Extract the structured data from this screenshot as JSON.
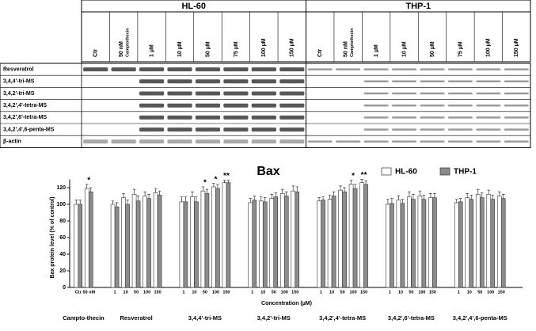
{
  "blot": {
    "cell_lines": [
      "HL-60",
      "THP-1"
    ],
    "lanes": [
      {
        "label": "Ctr"
      },
      {
        "label": "50 nM",
        "sublabel": "Camptothecin"
      },
      {
        "label": "1 µM"
      },
      {
        "label": "10 µM"
      },
      {
        "label": "50 µM"
      },
      {
        "label": "75 µM"
      },
      {
        "label": "100 µM"
      },
      {
        "label": "150 µM"
      }
    ],
    "rows": [
      "Resveratrol",
      "3,4,4'-tri-MS",
      "3,4,2'-tri-MS",
      "3,4,2',4'-tetra-MS",
      "3,4,2',6'-tetra-MS",
      "3,4,2',4',6-penta-MS",
      "β-actin"
    ]
  },
  "chart_data": {
    "type": "bar",
    "title": "Bax",
    "y_label": "Bax protein level (% of control)",
    "x_label": "Concentration (µM)",
    "groups": [
      {
        "label": "Campto-thecin",
        "categories": [
          "Ctr",
          "50 nM"
        ]
      },
      {
        "label": "Resveratrol",
        "categories": [
          "1",
          "10",
          "50",
          "100",
          "150"
        ]
      },
      {
        "label": "3,4,4'-tri-MS",
        "categories": [
          "1",
          "10",
          "50",
          "100",
          "150"
        ]
      },
      {
        "label": "3,4,2'-tri-MS",
        "categories": [
          "1",
          "10",
          "50",
          "100",
          "150"
        ]
      },
      {
        "label": "3,4,2',4'-tetra-MS",
        "categories": [
          "1",
          "10",
          "50",
          "100",
          "150"
        ]
      },
      {
        "label": "3,4,2',6'-tetra-MS",
        "categories": [
          "1",
          "10",
          "50",
          "100",
          "150"
        ]
      },
      {
        "label": "3,4,2',4',6-penta-MS",
        "categories": [
          "1",
          "10",
          "50",
          "100",
          "150"
        ]
      }
    ],
    "series": [
      {
        "name": "HL-60",
        "color": "#ffffff",
        "values": [
          100,
          119,
          100,
          108,
          112,
          110,
          114,
          103,
          109,
          116,
          121,
          126,
          102,
          104,
          107,
          113,
          116,
          104,
          106,
          117,
          124,
          126,
          100,
          105,
          109,
          110,
          108,
          102,
          108,
          112,
          112,
          110
        ],
        "errors": [
          5,
          5,
          4,
          5,
          6,
          5,
          5,
          6,
          6,
          5,
          4,
          3,
          5,
          5,
          5,
          5,
          6,
          4,
          5,
          5,
          5,
          4,
          6,
          5,
          6,
          6,
          5,
          4,
          5,
          6,
          5,
          5
        ]
      },
      {
        "name": "THP-1",
        "color": "#8c8c8c",
        "values": [
          100,
          115,
          97,
          100,
          104,
          107,
          111,
          103,
          103,
          113,
          119,
          126,
          105,
          103,
          109,
          110,
          115,
          105,
          110,
          115,
          119,
          124,
          101,
          101,
          106,
          106,
          108,
          103,
          106,
          108,
          106,
          107
        ],
        "errors": [
          5,
          5,
          5,
          5,
          6,
          5,
          5,
          6,
          6,
          5,
          5,
          3,
          5,
          5,
          5,
          5,
          6,
          4,
          5,
          5,
          5,
          4,
          6,
          5,
          6,
          5,
          5,
          4,
          5,
          6,
          5,
          5
        ]
      }
    ],
    "annotations": [
      {
        "text": "*",
        "index": 1
      },
      {
        "text": "*",
        "index": 9
      },
      {
        "text": "*",
        "index": 10
      },
      {
        "text": "**",
        "index": 11
      },
      {
        "text": "*",
        "index": 20
      },
      {
        "text": "**",
        "index": 21
      }
    ],
    "ylim": [
      0,
      130
    ],
    "yticks": [
      0,
      20,
      40,
      60,
      80,
      100,
      120
    ],
    "legend": "top-right"
  }
}
